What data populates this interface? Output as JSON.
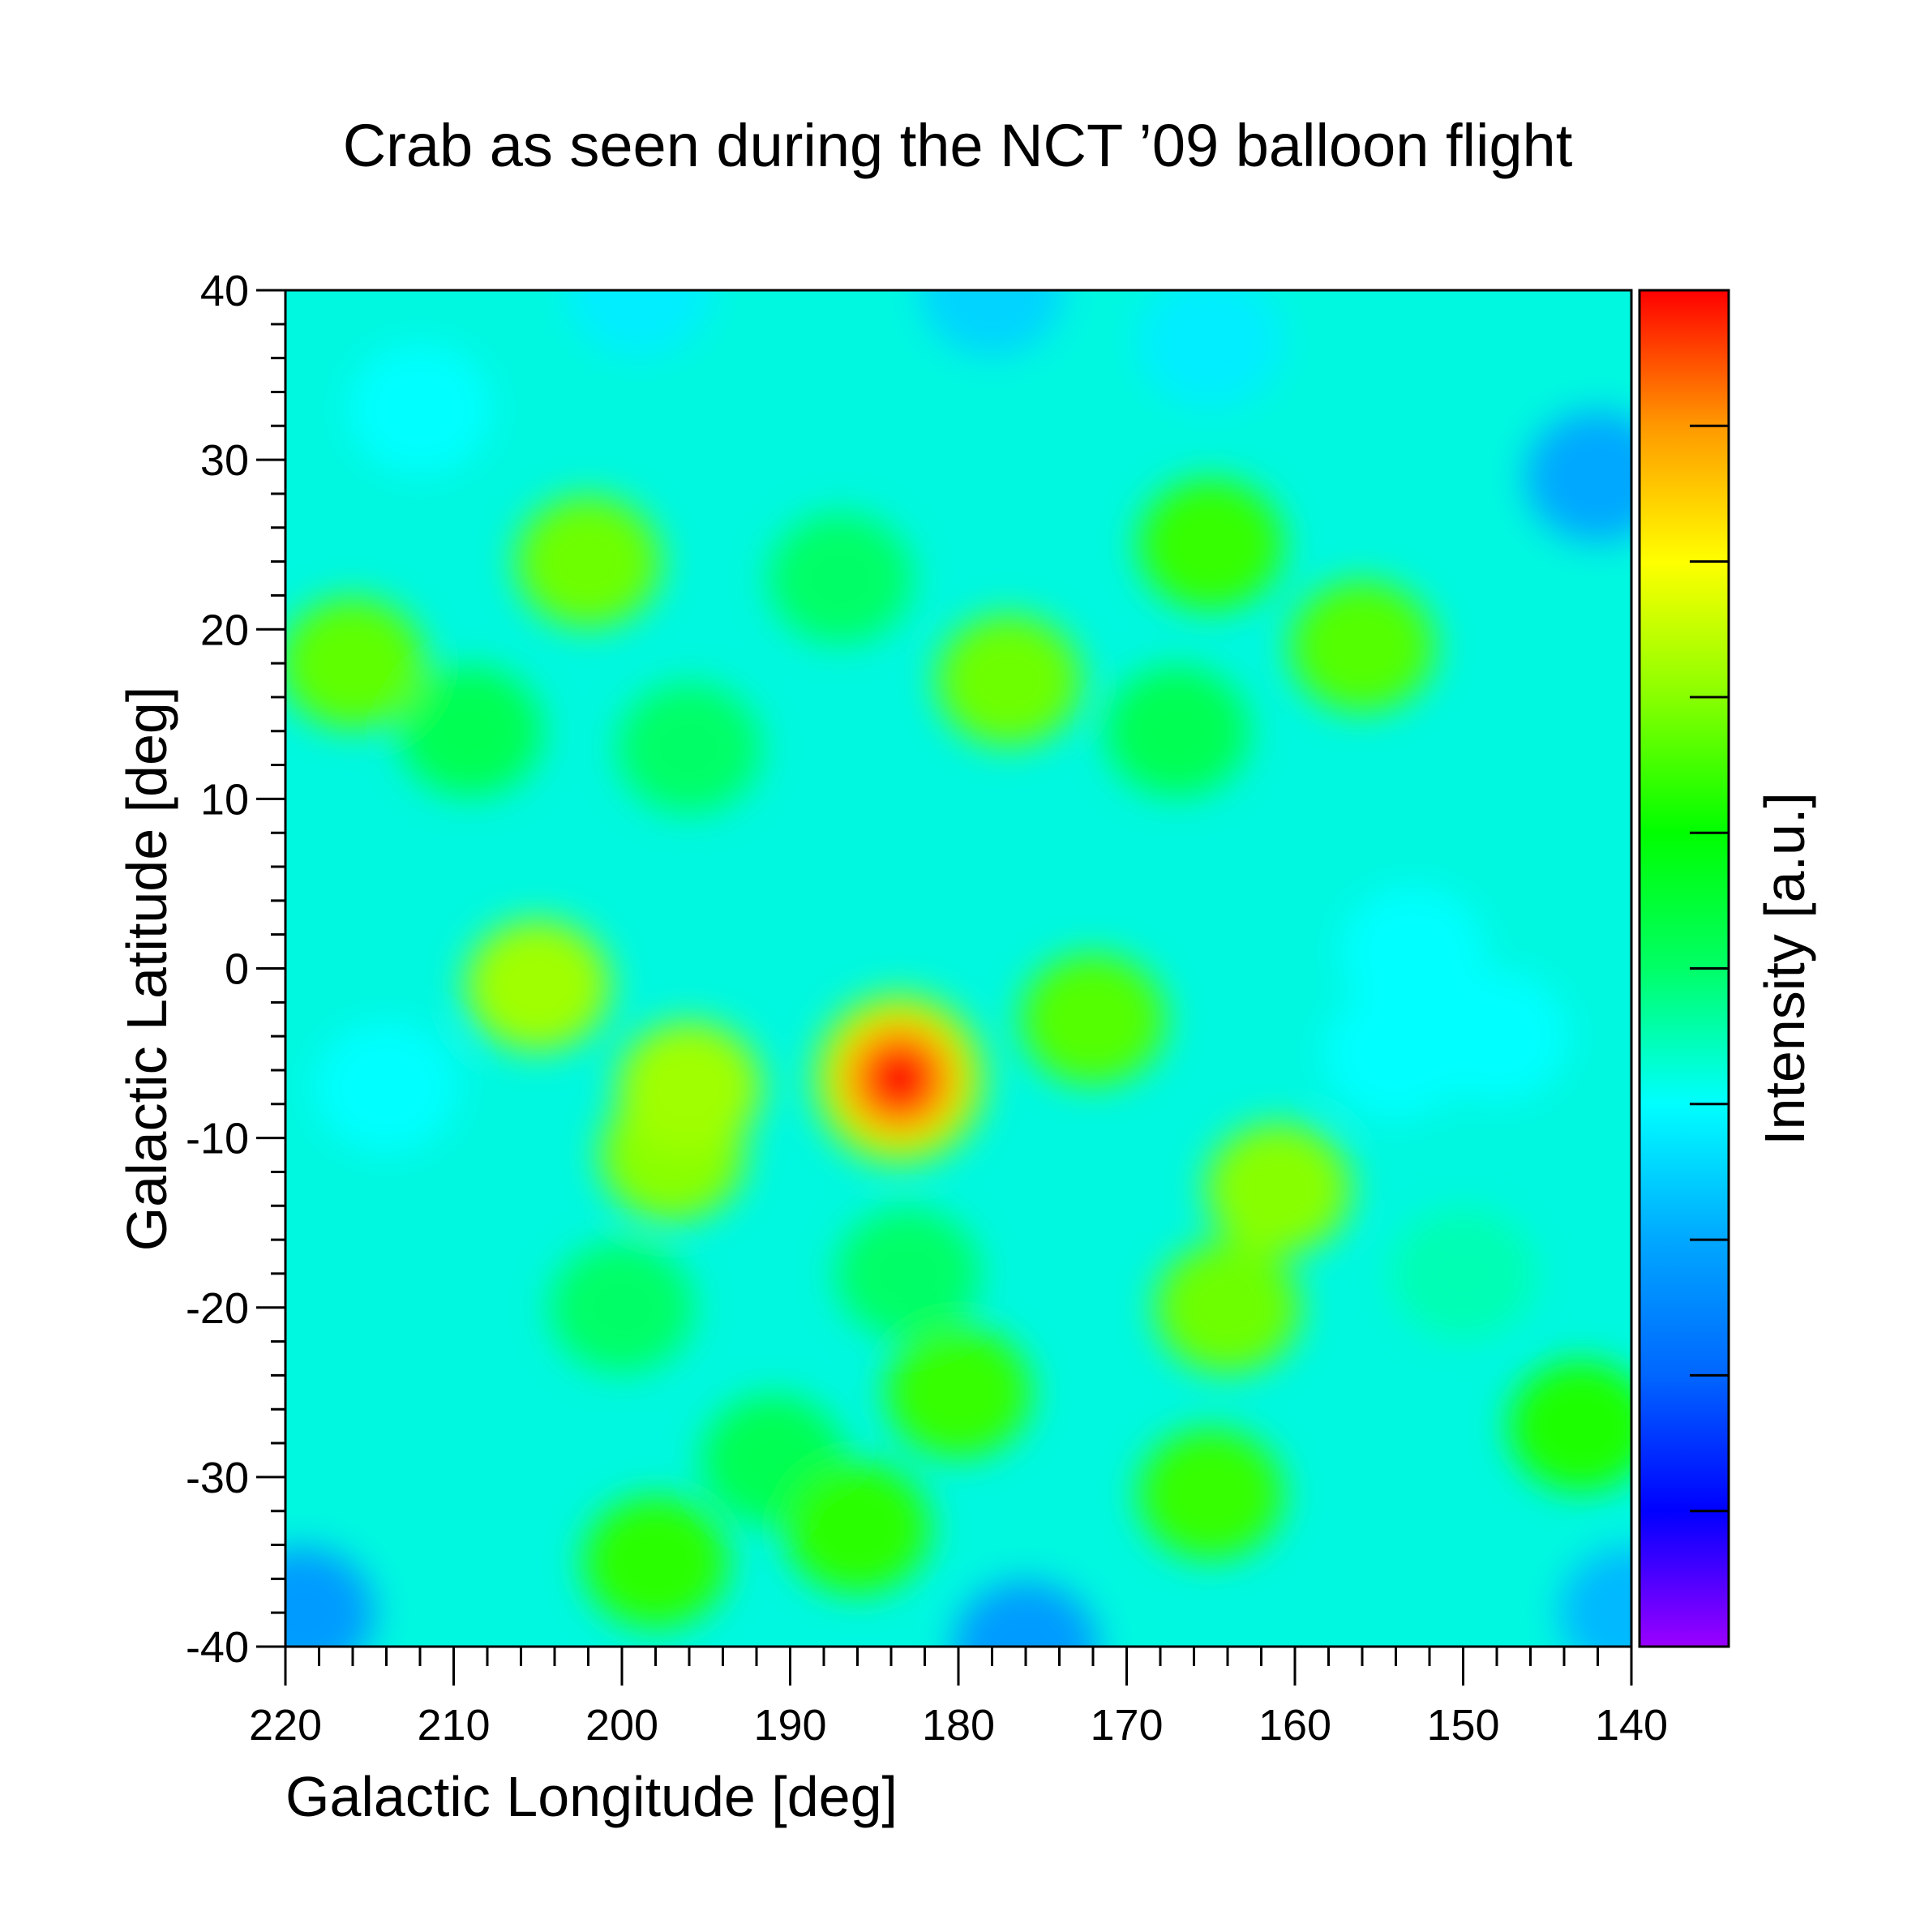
{
  "chart_data": {
    "type": "heatmap",
    "title": "Crab as seen during the NCT ’09 balloon flight",
    "xlabel": "Galactic Longitude [deg]",
    "ylabel": "Galactic Latitude [deg]",
    "colorbar_label": "Intensity [a.u.]",
    "xlim": [
      220,
      140
    ],
    "ylim": [
      -40,
      40
    ],
    "x_ticks": [
      220,
      210,
      200,
      190,
      180,
      170,
      160,
      150,
      140
    ],
    "y_ticks": [
      40,
      30,
      20,
      10,
      0,
      -10,
      -20,
      -30,
      -40
    ],
    "x_tick_labels": [
      "220",
      "210",
      "200",
      "190",
      "180",
      "170",
      "160",
      "150",
      "140"
    ],
    "y_tick_labels": [
      "40",
      "30",
      "20",
      "10",
      "0",
      "-10",
      "-20",
      "-30",
      "-40"
    ],
    "colormap": [
      "#9b00ff",
      "#0000ff",
      "#0066ff",
      "#00a8ff",
      "#00ffff",
      "#00ff66",
      "#00ff00",
      "#88ff00",
      "#ffff00",
      "#ff9900",
      "#ff0000"
    ],
    "peak": {
      "l": 183.5,
      "b": -6.5,
      "level": 1.0
    },
    "blobs": [
      {
        "l": 183.5,
        "b": -6.5,
        "level": 1.0
      },
      {
        "l": 205,
        "b": -1,
        "level": 0.72
      },
      {
        "l": 196,
        "b": -7,
        "level": 0.72
      },
      {
        "l": 197,
        "b": -11,
        "level": 0.7
      },
      {
        "l": 202,
        "b": 24,
        "level": 0.68
      },
      {
        "l": 216,
        "b": 18,
        "level": 0.67
      },
      {
        "l": 177,
        "b": 17,
        "level": 0.68
      },
      {
        "l": 161,
        "b": -13,
        "level": 0.7
      },
      {
        "l": 164,
        "b": -20,
        "level": 0.68
      },
      {
        "l": 156,
        "b": 19,
        "level": 0.66
      },
      {
        "l": 165,
        "b": 25,
        "level": 0.64
      },
      {
        "l": 172,
        "b": -3,
        "level": 0.66
      },
      {
        "l": 180,
        "b": -25,
        "level": 0.64
      },
      {
        "l": 165,
        "b": -31,
        "level": 0.64
      },
      {
        "l": 198,
        "b": -35,
        "level": 0.63
      },
      {
        "l": 186,
        "b": -33,
        "level": 0.63
      },
      {
        "l": 143,
        "b": -27,
        "level": 0.62
      },
      {
        "l": 154,
        "b": -5,
        "level": 0.4
      },
      {
        "l": 153,
        "b": 1,
        "level": 0.4
      },
      {
        "l": 148,
        "b": -4,
        "level": 0.4
      },
      {
        "l": 214,
        "b": -7,
        "level": 0.4
      },
      {
        "l": 142,
        "b": 29,
        "level": 0.3
      },
      {
        "l": 212,
        "b": 33,
        "level": 0.4
      },
      {
        "l": 176,
        "b": -40,
        "level": 0.28
      },
      {
        "l": 219,
        "b": -38,
        "level": 0.28
      },
      {
        "l": 140,
        "b": -38,
        "level": 0.32
      },
      {
        "l": 150,
        "b": -18,
        "level": 0.45
      },
      {
        "l": 187,
        "b": 23,
        "level": 0.5
      },
      {
        "l": 196,
        "b": 13,
        "level": 0.5
      },
      {
        "l": 209,
        "b": 14,
        "level": 0.52
      },
      {
        "l": 167,
        "b": 14,
        "level": 0.52
      },
      {
        "l": 183,
        "b": -18,
        "level": 0.5
      },
      {
        "l": 191,
        "b": -29,
        "level": 0.52
      },
      {
        "l": 200,
        "b": -20,
        "level": 0.5
      },
      {
        "l": 178,
        "b": 40,
        "level": 0.35
      },
      {
        "l": 199,
        "b": 40,
        "level": 0.38
      },
      {
        "l": 165,
        "b": 37,
        "level": 0.38
      }
    ]
  }
}
